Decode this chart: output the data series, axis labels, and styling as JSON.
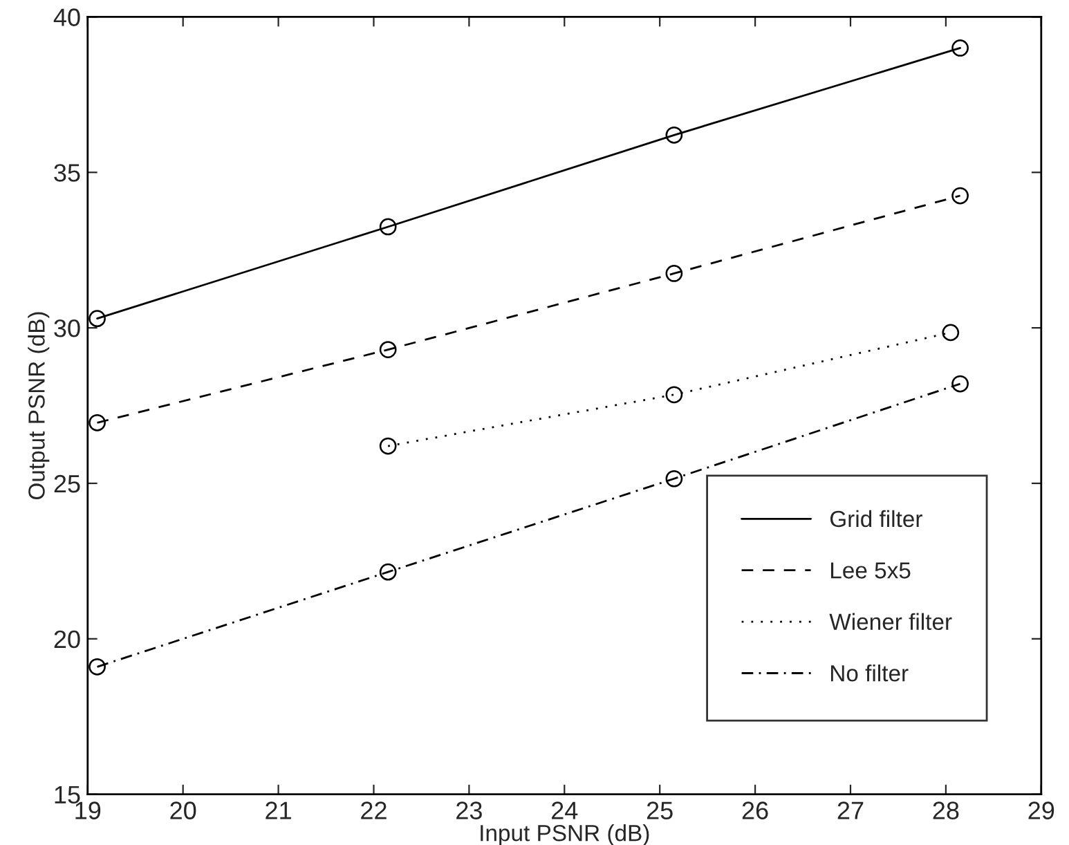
{
  "chart_data": {
    "type": "line",
    "xlabel": "Input PSNR (dB)",
    "ylabel": "Output PSNR (dB)",
    "xlim": [
      19,
      29
    ],
    "xticks": [
      19,
      20,
      21,
      22,
      23,
      24,
      25,
      26,
      27,
      28,
      29
    ],
    "ylim": [
      15,
      40
    ],
    "yticks": [
      15,
      20,
      25,
      30,
      35,
      40
    ],
    "grid": false,
    "legend": "bottom right",
    "marker": "circle",
    "series": [
      {
        "name": "Grid filter",
        "color": "#000000",
        "line_style": "solid",
        "x": [
          19.1,
          22.15,
          25.15,
          28.15
        ],
        "values": [
          30.3,
          33.25,
          36.2,
          39.0
        ]
      },
      {
        "name": "Lee 5x5",
        "color": "#000000",
        "line_style": "dashed",
        "x": [
          19.1,
          22.15,
          25.15,
          28.15
        ],
        "values": [
          26.95,
          29.3,
          31.75,
          34.25
        ]
      },
      {
        "name": "Wiener filter",
        "color": "#000000",
        "line_style": "dotted",
        "x": [
          22.15,
          25.15,
          28.05
        ],
        "values": [
          26.2,
          27.85,
          29.85
        ]
      },
      {
        "name": "No filter",
        "color": "#000000",
        "line_style": "dashdot",
        "x": [
          19.1,
          22.15,
          25.15,
          28.15
        ],
        "values": [
          19.1,
          22.15,
          25.15,
          28.2
        ]
      }
    ]
  }
}
